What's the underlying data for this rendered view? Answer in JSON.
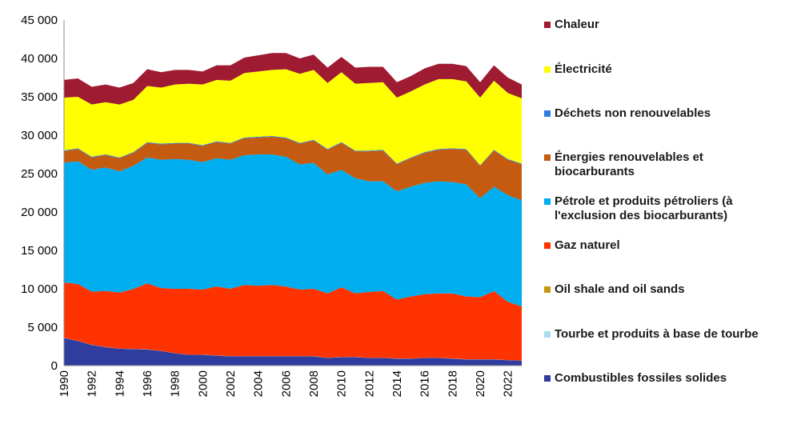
{
  "chart_data": {
    "type": "area",
    "stacked": true,
    "title": "",
    "xlabel": "",
    "ylabel": "",
    "ylim": [
      0,
      45000
    ],
    "yticks": [
      0,
      5000,
      10000,
      15000,
      20000,
      25000,
      30000,
      35000,
      40000,
      45000
    ],
    "ytick_labels": [
      "0",
      "5 000",
      "10 000",
      "15 000",
      "20 000",
      "25 000",
      "30 000",
      "35 000",
      "40 000",
      "45 000"
    ],
    "x": [
      1990,
      1991,
      1992,
      1993,
      1994,
      1995,
      1996,
      1997,
      1998,
      1999,
      2000,
      2001,
      2002,
      2003,
      2004,
      2005,
      2006,
      2007,
      2008,
      2009,
      2010,
      2011,
      2012,
      2013,
      2014,
      2015,
      2016,
      2017,
      2018,
      2019,
      2020,
      2021,
      2022,
      2023
    ],
    "xtick_labels": [
      "1990",
      "1992",
      "1994",
      "1996",
      "1998",
      "2000",
      "2002",
      "2004",
      "2006",
      "2008",
      "2010",
      "2012",
      "2014",
      "2016",
      "2018",
      "2020",
      "2022"
    ],
    "grid": false,
    "legend_position": "right",
    "series": [
      {
        "name": "Combustibles fossiles solides",
        "color": "#2E3D9E",
        "values": [
          3600,
          3200,
          2700,
          2400,
          2200,
          2150,
          2100,
          1900,
          1600,
          1400,
          1400,
          1300,
          1200,
          1200,
          1200,
          1200,
          1200,
          1200,
          1200,
          1000,
          1100,
          1100,
          1000,
          1000,
          900,
          900,
          1000,
          1000,
          900,
          800,
          800,
          800,
          700,
          650
        ]
      },
      {
        "name": "Tourbe et produits à base de tourbe",
        "color": "#A9DEF1",
        "values": [
          20,
          20,
          20,
          20,
          20,
          20,
          20,
          20,
          20,
          20,
          20,
          20,
          20,
          20,
          20,
          20,
          20,
          20,
          20,
          20,
          20,
          20,
          20,
          20,
          20,
          20,
          20,
          20,
          20,
          20,
          20,
          20,
          20,
          20
        ]
      },
      {
        "name": "Oil shale and oil sands",
        "color": "#C39A10",
        "values": [
          0,
          0,
          0,
          0,
          0,
          0,
          0,
          0,
          0,
          0,
          0,
          0,
          0,
          0,
          0,
          0,
          0,
          0,
          0,
          0,
          0,
          0,
          0,
          0,
          0,
          0,
          0,
          0,
          0,
          0,
          0,
          0,
          0,
          0
        ]
      },
      {
        "name": "Gaz naturel",
        "color": "#FF3300",
        "values": [
          7200,
          7400,
          6900,
          7300,
          7300,
          7800,
          8580,
          8180,
          8380,
          8580,
          8480,
          8980,
          8780,
          9280,
          9180,
          9280,
          9080,
          8680,
          8780,
          8380,
          9080,
          8280,
          8580,
          8680,
          7680,
          8080,
          8280,
          8380,
          8480,
          8180,
          8080,
          8880,
          7580,
          7030
        ]
      },
      {
        "name": "Pétrole et produits pétroliers (à l'exclusion des biocarburants)",
        "color": "#00AEEF",
        "values": [
          15600,
          15980,
          15880,
          16080,
          15780,
          16030,
          16400,
          16700,
          16900,
          16800,
          16600,
          16700,
          16800,
          16900,
          17100,
          17000,
          16900,
          16300,
          16400,
          15500,
          15300,
          15000,
          14400,
          14300,
          14100,
          14300,
          14500,
          14600,
          14500,
          14600,
          12900,
          13600,
          13900,
          13800
        ]
      },
      {
        "name": "Énergies renouvelables et biocarburants",
        "color": "#C55A11",
        "values": [
          1500,
          1600,
          1600,
          1600,
          1700,
          1700,
          1900,
          2000,
          2000,
          2100,
          2100,
          2100,
          2100,
          2200,
          2200,
          2300,
          2400,
          2700,
          2900,
          3200,
          3500,
          3500,
          3900,
          4000,
          3500,
          3700,
          3900,
          4100,
          4300,
          4500,
          4200,
          4700,
          4600,
          4700
        ]
      },
      {
        "name": "Déchets non renouvelables",
        "color": "#2F7FE0",
        "values": [
          100,
          100,
          100,
          100,
          100,
          100,
          100,
          100,
          100,
          100,
          100,
          100,
          100,
          100,
          100,
          100,
          100,
          100,
          100,
          100,
          100,
          100,
          100,
          100,
          100,
          100,
          100,
          100,
          100,
          100,
          100,
          100,
          100,
          100
        ]
      },
      {
        "name": "Électricité",
        "color": "#FFFF00",
        "values": [
          6880,
          6700,
          6800,
          6800,
          6900,
          6800,
          7300,
          7300,
          7600,
          7700,
          7900,
          8000,
          8100,
          8400,
          8500,
          8600,
          8900,
          9000,
          9100,
          8600,
          9100,
          8700,
          8800,
          8800,
          8600,
          8600,
          8800,
          9100,
          9000,
          8800,
          8800,
          9000,
          8600,
          8500
        ]
      },
      {
        "name": "Chaleur",
        "color": "#9E1B32",
        "values": [
          2300,
          2400,
          2300,
          2300,
          2200,
          2200,
          2200,
          2000,
          1900,
          1800,
          1700,
          1900,
          2000,
          2000,
          2100,
          2200,
          2100,
          2000,
          2000,
          2000,
          2000,
          2100,
          2100,
          2000,
          2000,
          2000,
          2100,
          2000,
          2000,
          2000,
          2000,
          2000,
          2000,
          1800
        ]
      }
    ]
  },
  "legend_order": [
    8,
    7,
    6,
    5,
    4,
    3,
    2,
    1,
    0
  ]
}
